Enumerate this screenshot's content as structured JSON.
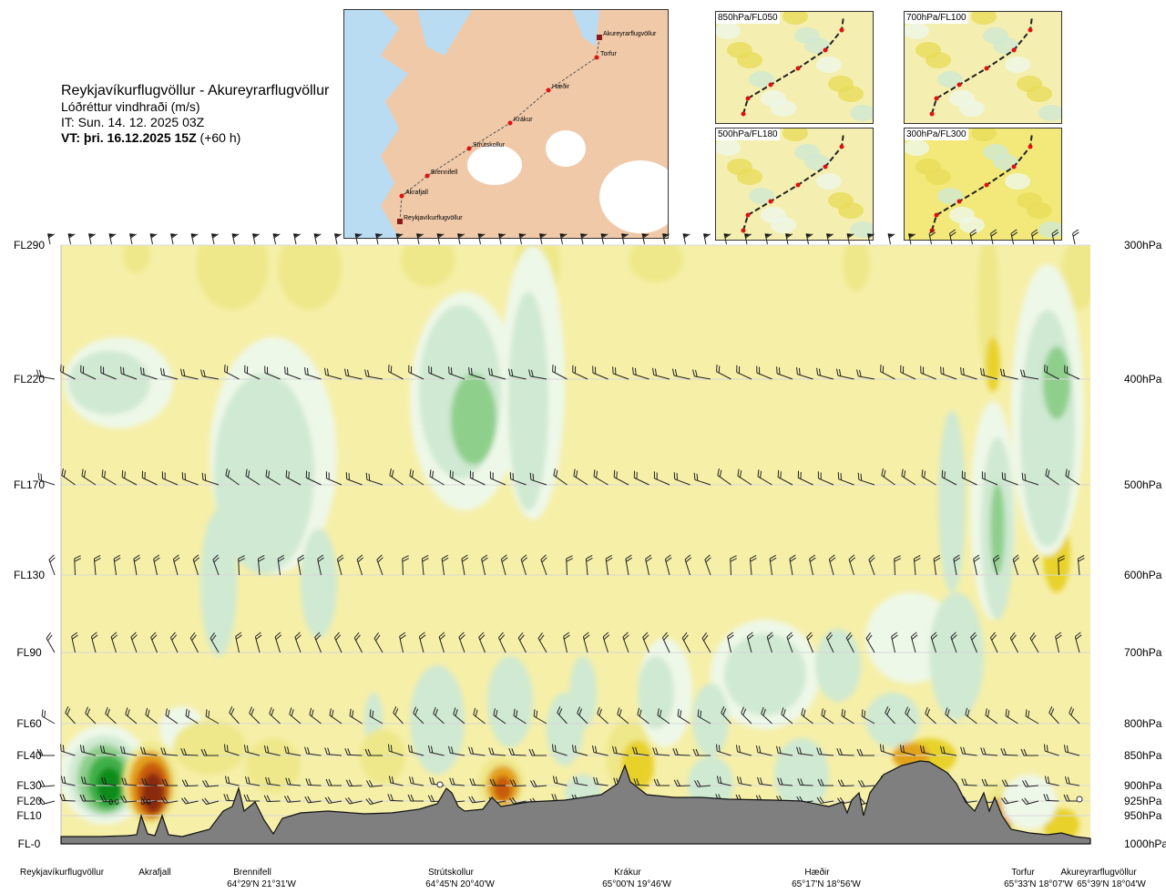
{
  "header": {
    "route": "Reykjavíkurflugvöllur - Akureyrarflugvöllur",
    "variable": "Lóðréttur vindhraði (m/s)",
    "issue_time": "IT: Sun. 14. 12. 2025 03Z",
    "valid_time_prefix": "VT: þri. 16.12.2025 15Z",
    "valid_time_offset": "(+60 h)"
  },
  "map": {
    "points": [
      "Akureyrarflugvöllur",
      "Torfur",
      "Hæðir",
      "Krákur",
      "Strútskollur",
      "Brennifell",
      "Akrafjall",
      "Reykjavíkurflugvöllur"
    ],
    "colors": {
      "land": "#f0c9a8",
      "sea": "#b9dcf3",
      "ice": "#ffffff",
      "route": "#555555",
      "point": "#e01010"
    }
  },
  "insets": [
    {
      "label": "850hPa/FL050"
    },
    {
      "label": "700hPa/FL100"
    },
    {
      "label": "500hPa/FL180"
    },
    {
      "label": "300hPa/FL300"
    }
  ],
  "chart_data": {
    "type": "heatmap",
    "title": "Lóðréttur vindhraði (m/s)",
    "xlabel": "",
    "ylabel": "",
    "flight_levels": [
      "FL290",
      "FL220",
      "FL170",
      "FL130",
      "FL90",
      "FL60",
      "FL40",
      "FL30",
      "FL20",
      "FL10",
      "FL-0"
    ],
    "pressure_levels": [
      "300hPa",
      "400hPa",
      "500hPa",
      "600hPa",
      "700hPa",
      "800hPa",
      "850hPa",
      "900hPa",
      "925hPa",
      "950hPa",
      "1000hPa"
    ],
    "pressure_values": [
      300,
      400,
      500,
      600,
      700,
      800,
      850,
      900,
      925,
      950,
      1000
    ],
    "waypoints": [
      {
        "name": "Reykjavíkurflugvöllur",
        "coord": ""
      },
      {
        "name": "Akrafjall",
        "coord": ""
      },
      {
        "name": "Brennifell",
        "coord": "64°29'N 21°31'W"
      },
      {
        "name": "Strútskollur",
        "coord": "64°45'N 20°40'W"
      },
      {
        "name": "Krákur",
        "coord": "65°00'N 19°46'W"
      },
      {
        "name": "Hæðir",
        "coord": "65°17'N 18°56'W"
      },
      {
        "name": "Torfur",
        "coord": "65°33'N 18°07'W"
      },
      {
        "name": "Akureyrarflugvöllur",
        "coord": "65°39'N 18°04'W"
      }
    ],
    "contour_labels": [
      "0.0",
      "0.0"
    ],
    "colors": {
      "strong_down": "#0a8c1e",
      "down": "#3fb04a",
      "mod_down": "#8fcf8c",
      "weak_down": "#cfe9d2",
      "near_zero_down": "#eef8e8",
      "neutral": "#f6efa8",
      "near_zero_up": "#fffbe0",
      "weak_up": "#eee88a",
      "up": "#e8d22a",
      "mod_up": "#e3a21a",
      "strong_up": "#c85a10",
      "max_up": "#8a2a0c",
      "terrain": "#7f7f7f",
      "grid": "#d8d8d8"
    },
    "grid": true,
    "legend": "none"
  }
}
